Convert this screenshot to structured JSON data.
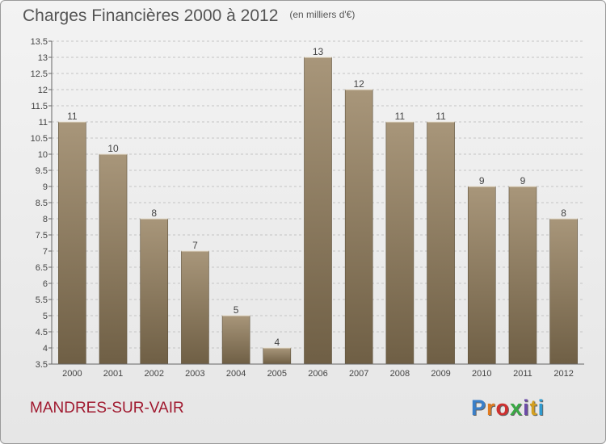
{
  "header": {
    "title": "Charges Financières 2000 à 2012",
    "unit": "(en milliers d'€)"
  },
  "footer": {
    "commune": "MANDRES-SUR-VAIR",
    "logo": "Proxiti",
    "logo_colors": [
      "#3a7fc9",
      "#e07b20",
      "#cf2f2f",
      "#3aa845",
      "#6b4aa8",
      "#d4a020",
      "#2f9bd0"
    ]
  },
  "chart_data": {
    "type": "bar",
    "title": "Charges Financières 2000 à 2012",
    "subtitle": "(en milliers d'€)",
    "categories": [
      "2000",
      "2001",
      "2002",
      "2003",
      "2004",
      "2005",
      "2006",
      "2007",
      "2008",
      "2009",
      "2010",
      "2011",
      "2012"
    ],
    "values": [
      11,
      10,
      8,
      7,
      5,
      4,
      13,
      12,
      11,
      11,
      9,
      9,
      8
    ],
    "ylim": [
      3.5,
      13.5
    ],
    "yticks": [
      3.5,
      4,
      4.5,
      5,
      5.5,
      6,
      6.5,
      7,
      7.5,
      8,
      8.5,
      9,
      9.5,
      10,
      10.5,
      11,
      11.5,
      12,
      12.5,
      13,
      13.5
    ],
    "ytick_labels": [
      "3.5",
      "4",
      "4.5",
      "5",
      "5.5",
      "6",
      "6.5",
      "7",
      "7.5",
      "8",
      "8.5",
      "9",
      "9.5",
      "10",
      "10.5",
      "11",
      "11.5",
      "12",
      "12.5",
      "13",
      "13.5"
    ],
    "grid": true,
    "bar_color": "#8c7a5e"
  }
}
